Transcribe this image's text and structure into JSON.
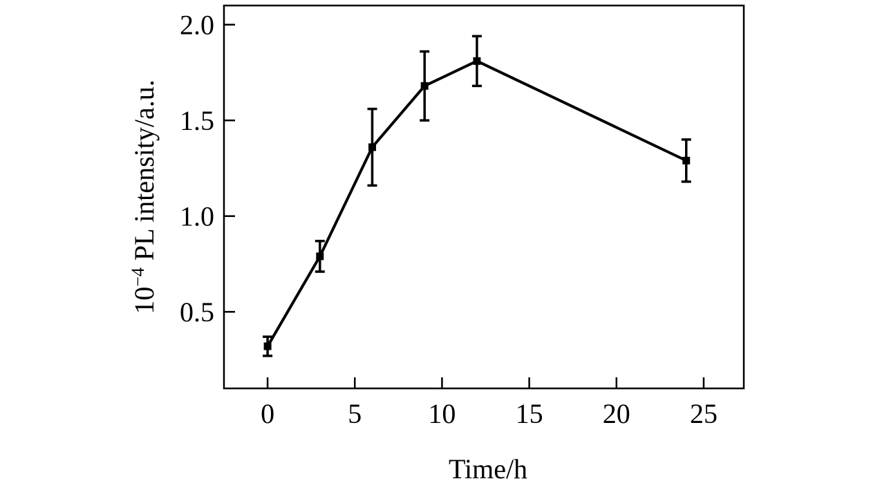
{
  "chart_data": {
    "type": "line",
    "xlabel": "Time/h",
    "ylabel": {
      "prefix": "10",
      "exponent": "−4",
      "text": " PL intensity/a.u."
    },
    "xlim": [
      -2.5,
      27.3
    ],
    "ylim": [
      0.1,
      2.1
    ],
    "x_ticks": [
      0,
      5,
      10,
      15,
      20,
      25
    ],
    "y_ticks": [
      0.5,
      1.0,
      1.5,
      2.0
    ],
    "y_tick_labels": [
      "0.5",
      "1.0",
      "1.5",
      "2.0"
    ],
    "grid": false,
    "series": [
      {
        "color": "#000000",
        "marker": "square",
        "x": [
          0,
          3,
          6,
          9,
          12,
          24
        ],
        "y": [
          0.32,
          0.79,
          1.36,
          1.68,
          1.81,
          1.29
        ],
        "error": [
          0.05,
          0.08,
          0.2,
          0.18,
          0.13,
          0.11
        ]
      }
    ]
  }
}
